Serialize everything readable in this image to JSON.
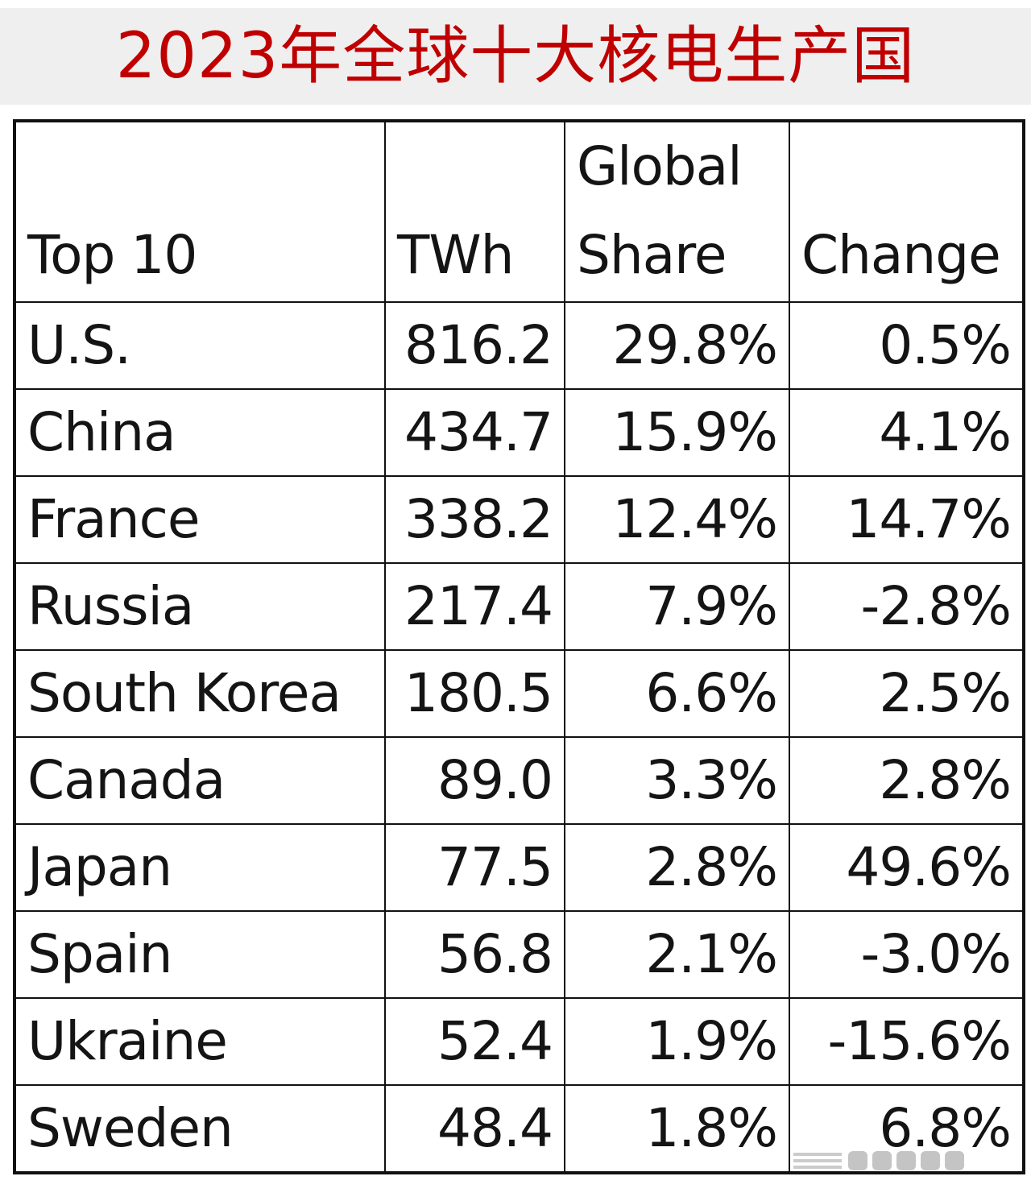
{
  "title": "2023年全球十大核电生产国",
  "chart_data": {
    "type": "table",
    "title": "2023年全球十大核电生产国",
    "columns": [
      "Top 10",
      "TWh",
      "Global Share",
      "Change"
    ],
    "header_lines": {
      "top10": "Top 10",
      "twh": "TWh",
      "share_line1": "Global",
      "share_line2": "Share",
      "change": "Change"
    },
    "rows": [
      {
        "country": "U.S.",
        "twh": "816.2",
        "share": "29.8%",
        "change": "0.5%"
      },
      {
        "country": "China",
        "twh": "434.7",
        "share": "15.9%",
        "change": "4.1%"
      },
      {
        "country": "France",
        "twh": "338.2",
        "share": "12.4%",
        "change": "14.7%"
      },
      {
        "country": "Russia",
        "twh": "217.4",
        "share": "7.9%",
        "change": "-2.8%"
      },
      {
        "country": "South Korea",
        "twh": "180.5",
        "share": "6.6%",
        "change": "2.5%"
      },
      {
        "country": "Canada",
        "twh": "89.0",
        "share": "3.3%",
        "change": "2.8%"
      },
      {
        "country": "Japan",
        "twh": "77.5",
        "share": "2.8%",
        "change": "49.6%"
      },
      {
        "country": "Spain",
        "twh": "56.8",
        "share": "2.1%",
        "change": "-3.0%"
      },
      {
        "country": "Ukraine",
        "twh": "52.4",
        "share": "1.9%",
        "change": "-15.6%"
      },
      {
        "country": "Sweden",
        "twh": "48.4",
        "share": "1.8%",
        "change": "6.8%"
      }
    ]
  },
  "colors": {
    "title": "#c00000",
    "title_background": "#efefef",
    "grid": "#111111",
    "text": "#141414"
  }
}
